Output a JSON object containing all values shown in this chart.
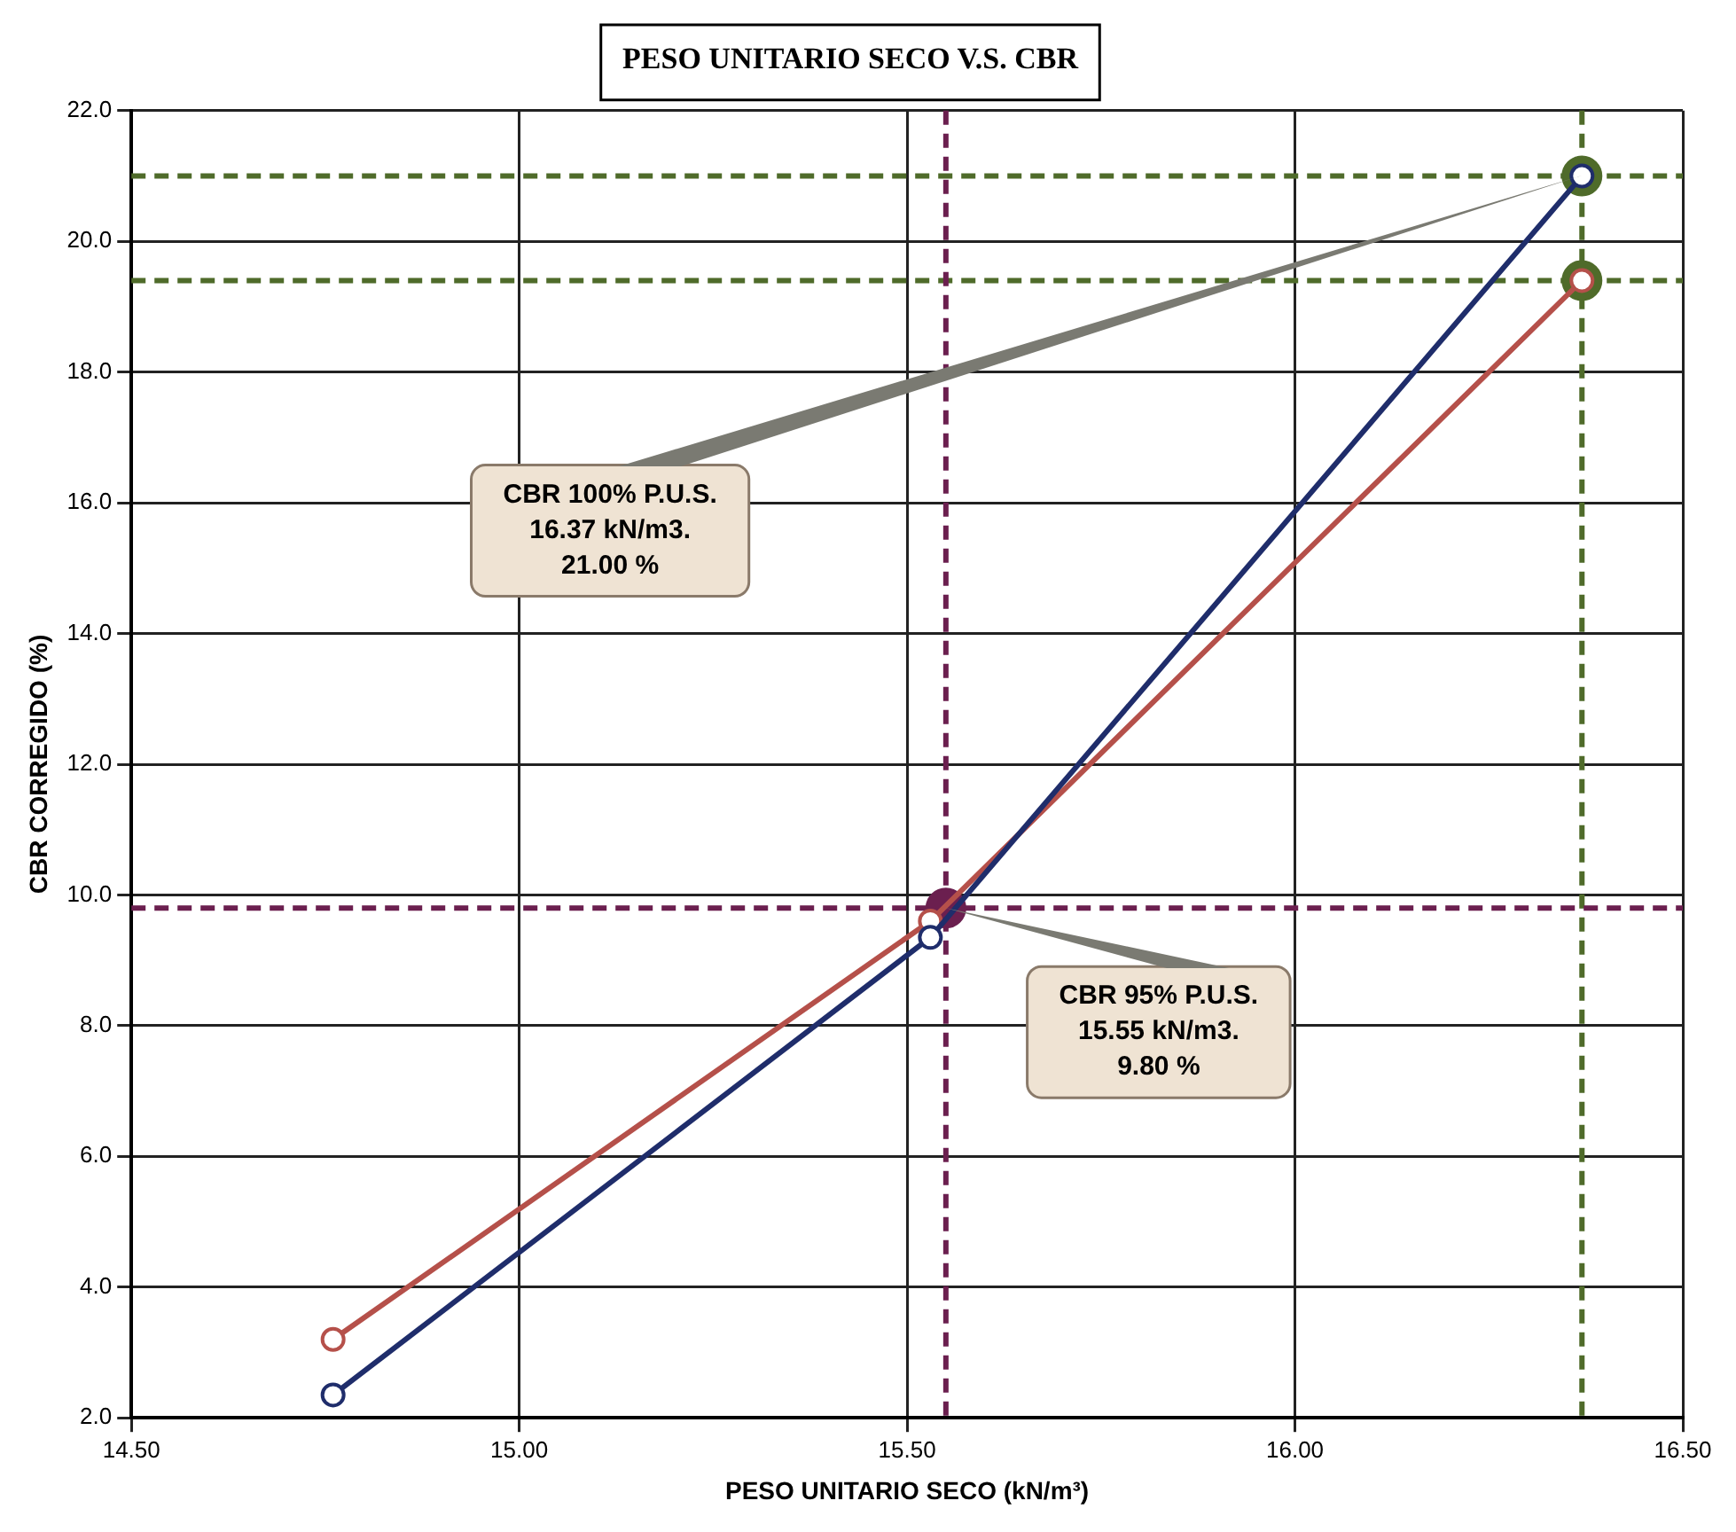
{
  "chart_data": {
    "type": "line",
    "title": "PESO UNITARIO SECO V.S. CBR",
    "xlabel": "PESO UNITARIO SECO (kN/m³)",
    "ylabel": "CBR CORREGIDO (%)",
    "xlim": [
      14.5,
      16.5
    ],
    "xticks": [
      {
        "value": 14.5,
        "label": "14.50"
      },
      {
        "value": 15,
        "label": "15.00"
      },
      {
        "value": 15.5,
        "label": "15.50"
      },
      {
        "value": 16,
        "label": "16.00"
      },
      {
        "value": 16.5,
        "label": "16.50"
      }
    ],
    "ylim": [
      2,
      22
    ],
    "yticks": [
      {
        "value": 2,
        "label": "2.0"
      },
      {
        "value": 4,
        "label": "4.0"
      },
      {
        "value": 6,
        "label": "6.0"
      },
      {
        "value": 8,
        "label": "8.0"
      },
      {
        "value": 10,
        "label": "10.0"
      },
      {
        "value": 12,
        "label": "12.0"
      },
      {
        "value": 14,
        "label": "14.0"
      },
      {
        "value": 16,
        "label": "16.0"
      },
      {
        "value": 18,
        "label": "18.0"
      },
      {
        "value": 20,
        "label": "20.0"
      },
      {
        "value": 22,
        "label": "22.0"
      }
    ],
    "grid": true,
    "legend": false,
    "marker": "circle",
    "series": [
      {
        "color": "#1f2d6b",
        "x": [
          14.76,
          15.53,
          16.37
        ],
        "values": [
          2.35,
          9.35,
          21.0
        ]
      },
      {
        "color": "#b5504a",
        "x": [
          14.76,
          15.53,
          16.37
        ],
        "values": [
          3.2,
          9.6,
          19.4
        ]
      },
      {
        "type": "scatter",
        "color": "#6b1f4f",
        "x": [
          15.55
        ],
        "values": [
          9.8
        ]
      },
      {
        "type": "scatter",
        "color": "#4f6b2a",
        "x": [
          16.37,
          16.37
        ],
        "values": [
          21.0,
          19.4
        ]
      }
    ],
    "ref_lines": [
      {
        "axis": "y",
        "value": 21.0,
        "color": "#4f6b2a",
        "line_style": "dashed"
      },
      {
        "axis": "y",
        "value": 19.4,
        "color": "#4f6b2a",
        "line_style": "dashed"
      },
      {
        "axis": "x",
        "value": 16.37,
        "color": "#4f6b2a",
        "line_style": "dashed"
      },
      {
        "axis": "y",
        "value": 9.8,
        "color": "#6b1f4f",
        "line_style": "dashed"
      },
      {
        "axis": "x",
        "value": 15.55,
        "color": "#6b1f4f",
        "line_style": "dashed"
      }
    ],
    "annotations": [
      {
        "text": "CBR 100% P.U.S.\n16.37 kN/m3.\n21.00 %",
        "x": 16.37,
        "y": 21.0
      },
      {
        "text": "CBR 95% P.U.S.\n15.55 kN/m3.\n9.80 %",
        "x": 15.55,
        "y": 9.8
      }
    ]
  }
}
